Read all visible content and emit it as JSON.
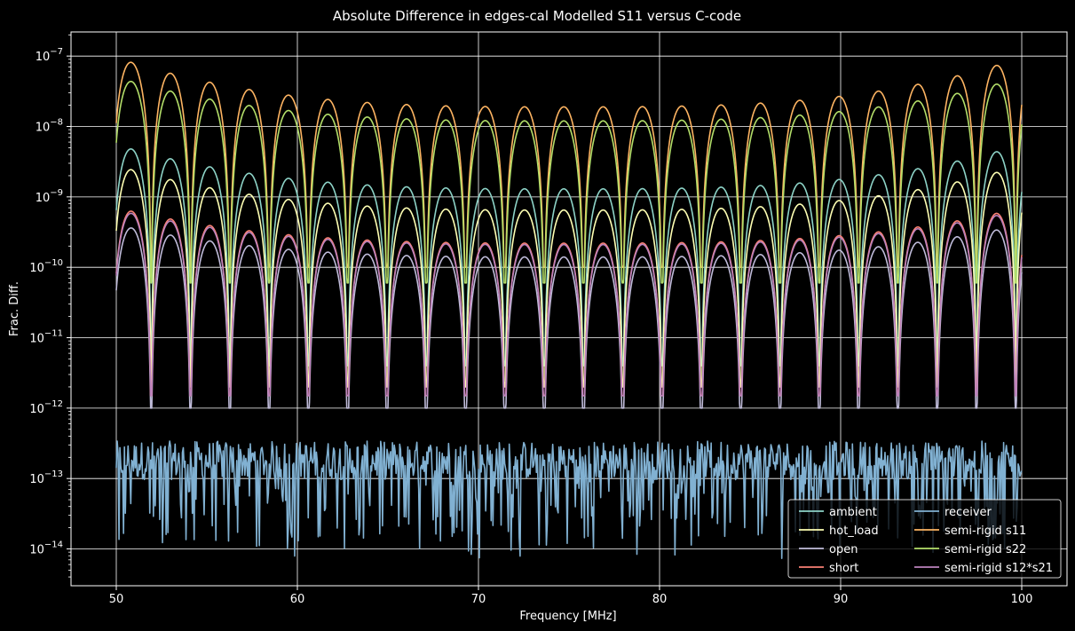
{
  "chart_data": {
    "type": "line",
    "title": "Absolute Difference in edges-cal Modelled S11 versus C-code",
    "xlabel": "Frequency [MHz]",
    "ylabel": "Frac. Diff.",
    "xlim": [
      47.5,
      102.5
    ],
    "ylim": [
      3e-15,
      2.2e-07
    ],
    "yscale": "log",
    "grid": true,
    "legend_position": "lower-right",
    "x_ticks": [
      50,
      60,
      70,
      80,
      90,
      100
    ],
    "x_tick_labels": [
      "50",
      "60",
      "70",
      "80",
      "90",
      "100"
    ],
    "y_ticks": [
      1e-14,
      1e-13,
      1e-12,
      1e-11,
      1e-10,
      1e-09,
      1e-08,
      1e-07
    ],
    "y_tick_labels": [
      {
        "base": "10",
        "exp": "−14"
      },
      {
        "base": "10",
        "exp": "−13"
      },
      {
        "base": "10",
        "exp": "−12"
      },
      {
        "base": "10",
        "exp": "−11"
      },
      {
        "base": "10",
        "exp": "−10"
      },
      {
        "base": "10",
        "exp": "−9"
      },
      {
        "base": "10",
        "exp": "−8"
      },
      {
        "base": "10",
        "exp": "−7"
      }
    ],
    "x_range": [
      50,
      100
    ],
    "lobe_period_mhz": 2.17,
    "series": [
      {
        "name": "ambient",
        "color": "#8dd3c7",
        "envelope_edge": 5.5e-09,
        "envelope_mid": 1.3e-09,
        "null_min": 4e-12
      },
      {
        "name": "hot_load",
        "color": "#feffb3",
        "envelope_edge": 2.8e-09,
        "envelope_mid": 6.5e-10,
        "null_min": 2e-12
      },
      {
        "name": "open",
        "color": "#bfbbd9",
        "envelope_edge": 4e-10,
        "envelope_mid": 1.4e-10,
        "null_min": 1e-12
      },
      {
        "name": "short",
        "color": "#fa8174",
        "envelope_edge": 7e-10,
        "envelope_mid": 2.2e-10,
        "null_min": 1.5e-12
      },
      {
        "name": "receiver",
        "color": "#81b1d2",
        "noise_median": 1.7e-13,
        "noise_max": 4.2e-13,
        "noise_min": 7e-15
      },
      {
        "name": "semi-rigid s11",
        "color": "#fdb462",
        "envelope_edge": 9.5e-08,
        "envelope_mid": 1.9e-08,
        "null_min": 1e-10
      },
      {
        "name": "semi-rigid s22",
        "color": "#b3de69",
        "envelope_edge": 5e-08,
        "envelope_mid": 1.2e-08,
        "null_min": 6e-11
      },
      {
        "name": "semi-rigid s12*s21",
        "color": "#bc82bd",
        "envelope_edge": 6.5e-10,
        "envelope_mid": 2.1e-10,
        "null_min": 1.5e-12
      }
    ],
    "colors": {
      "background": "#000000",
      "grid": "#ffffff",
      "axes": "#ffffff",
      "legend_border": "#ffffff"
    }
  }
}
